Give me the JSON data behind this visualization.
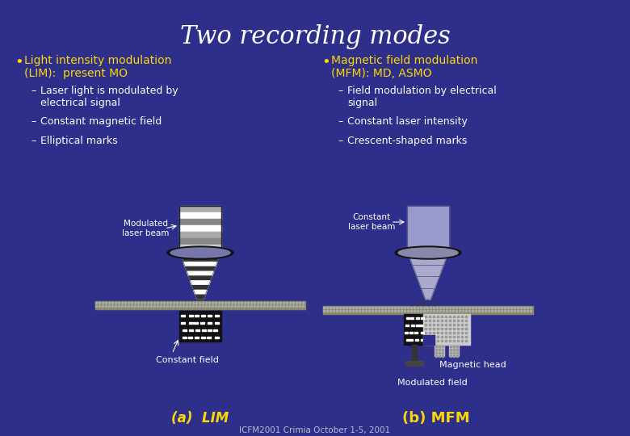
{
  "bg_color": "#2E2E8B",
  "title": "Two recording modes",
  "title_color": "#FFFFFF",
  "title_fontsize": 22,
  "bullet_color": "#FFD700",
  "sub_color": "#FFFFFF",
  "footer": "ICFM2001 Crimia October 1-5, 2001",
  "footer_color": "#BBBBCC",
  "left_bullet": "Light intensity modulation\n(LIM):  present MO",
  "left_subs": [
    "Laser light is modulated by\nelectrical signal",
    "Constant magnetic field",
    "Elliptical marks"
  ],
  "right_bullet": "Magnetic field modulation\n(MFM): MD, ASMO",
  "right_subs": [
    "Field modulation by electrical\nsignal",
    "Constant laser intensity",
    "Crescent-shaped marks"
  ],
  "label_a": "(a)  LIM",
  "label_b": "(b) MFM",
  "label_modulated_laser": "Modulated\nlaser beam",
  "label_constant_laser": "Constant\nlaser beam",
  "label_constant_field": "Constant field",
  "label_modulated_field": "Modulated field",
  "label_magnetic_head": "Magnetic head"
}
